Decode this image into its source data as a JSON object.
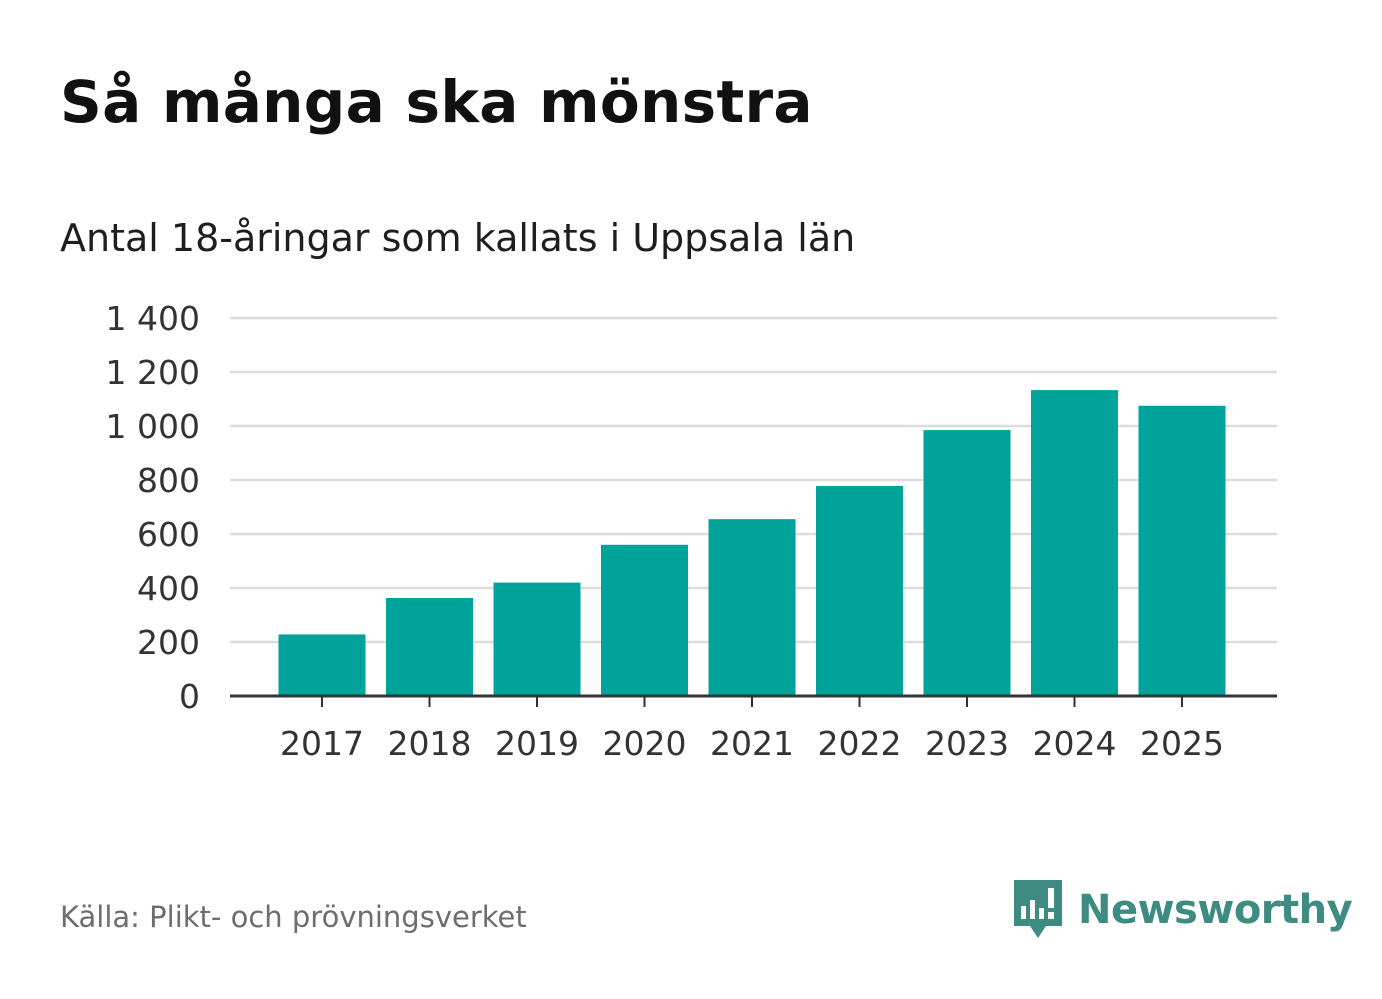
{
  "title": "Så många ska mönstra",
  "subtitle": "Antal 18-åringar som kallats i Uppsala län",
  "source": "Källa: Plikt- och prövningsverket",
  "brand": {
    "name": "Newsworthy",
    "icon": "newsworthy-logo-icon",
    "color": "#3d8b81"
  },
  "colors": {
    "bar": "#00a39a",
    "grid": "#dcdcdc",
    "axis": "#333333",
    "text": "#333333"
  },
  "chart_data": {
    "type": "bar",
    "title": "Så många ska mönstra",
    "subtitle": "Antal 18-åringar som kallats i Uppsala län",
    "xlabel": "",
    "ylabel": "",
    "categories": [
      "2017",
      "2018",
      "2019",
      "2020",
      "2021",
      "2022",
      "2023",
      "2024",
      "2025"
    ],
    "values": [
      228,
      363,
      420,
      560,
      655,
      778,
      985,
      1133,
      1075
    ],
    "ylim": [
      0,
      1400
    ],
    "yticks": [
      0,
      200,
      400,
      600,
      800,
      1000,
      1200,
      1400
    ],
    "ytick_labels": [
      "0",
      "200",
      "400",
      "600",
      "800",
      "1 000",
      "1 200",
      "1 400"
    ],
    "grid": true,
    "legend": "none"
  }
}
